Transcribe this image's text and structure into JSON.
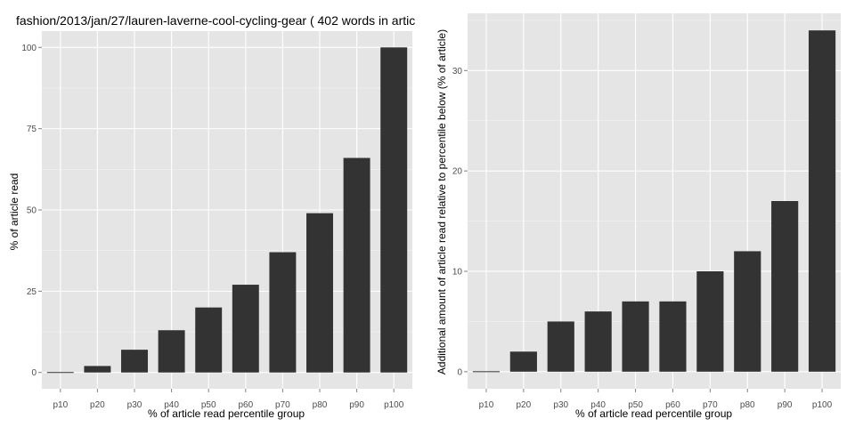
{
  "chart_data": [
    {
      "type": "bar",
      "title": "fashion/2013/jan/27/lauren-laverne-cool-cycling-gear ( 402 words in artic",
      "xlabel": "% of article read percentile group",
      "ylabel": "% of article read",
      "categories": [
        "p10",
        "p20",
        "p30",
        "p40",
        "p50",
        "p60",
        "p70",
        "p80",
        "p90",
        "p100"
      ],
      "values": [
        0,
        2,
        7,
        13,
        20,
        27,
        37,
        49,
        66,
        100
      ],
      "ylim": [
        -5,
        105
      ],
      "yticks": [
        0,
        25,
        50,
        75,
        100
      ],
      "grid": true,
      "colors": {
        "panel": "#e5e5e5",
        "bar": "#333333",
        "grid_major": "#ffffff",
        "grid_minor": "#f2f2f2"
      }
    },
    {
      "type": "bar",
      "title": "",
      "xlabel": "% of article read percentile group",
      "ylabel": "Additional amount of article read relative to percentile below (% of article)",
      "categories": [
        "p10",
        "p20",
        "p30",
        "p40",
        "p50",
        "p60",
        "p70",
        "p80",
        "p90",
        "p100"
      ],
      "values": [
        0,
        2,
        5,
        6,
        7,
        7,
        10,
        12,
        17,
        34
      ],
      "ylim": [
        -1.7,
        35.7
      ],
      "yticks": [
        0,
        10,
        20,
        30
      ],
      "grid": true,
      "colors": {
        "panel": "#e5e5e5",
        "bar": "#333333",
        "grid_major": "#ffffff",
        "grid_minor": "#f2f2f2"
      }
    }
  ]
}
